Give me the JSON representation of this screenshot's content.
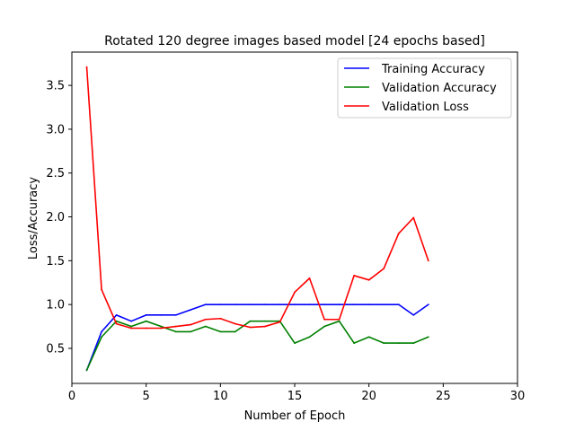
{
  "chart_data": {
    "type": "line",
    "title": "Rotated 120 degree images based model [24 epochs based]",
    "xlabel": "Number of Epoch",
    "ylabel": "Loss/Accuracy",
    "xlim": [
      0,
      30
    ],
    "ylim": [
      0.1,
      3.88
    ],
    "xticks": [
      0,
      5,
      10,
      15,
      20,
      25,
      30
    ],
    "xtick_labels": [
      "0",
      "5",
      "10",
      "15",
      "20",
      "25",
      "30"
    ],
    "yticks": [
      0.5,
      1.0,
      1.5,
      2.0,
      2.5,
      3.0,
      3.5
    ],
    "ytick_labels": [
      "0.5",
      "1.0",
      "1.5",
      "2.0",
      "2.5",
      "3.0",
      "3.5"
    ],
    "grid": false,
    "legend_position": "top-right",
    "x": [
      1,
      2,
      3,
      4,
      5,
      6,
      7,
      8,
      9,
      10,
      11,
      12,
      13,
      14,
      15,
      16,
      17,
      18,
      19,
      20,
      21,
      22,
      23,
      24
    ],
    "series": [
      {
        "name": "Training Accuracy",
        "color": "#0000ff",
        "values": [
          0.25,
          0.69,
          0.88,
          0.81,
          0.88,
          0.88,
          0.88,
          0.94,
          1.0,
          1.0,
          1.0,
          1.0,
          1.0,
          1.0,
          1.0,
          1.0,
          1.0,
          1.0,
          1.0,
          1.0,
          1.0,
          1.0,
          0.88,
          1.0
        ]
      },
      {
        "name": "Validation Accuracy",
        "color": "#008000",
        "values": [
          0.25,
          0.63,
          0.81,
          0.75,
          0.81,
          0.75,
          0.69,
          0.69,
          0.75,
          0.69,
          0.69,
          0.81,
          0.81,
          0.81,
          0.56,
          0.63,
          0.75,
          0.81,
          0.56,
          0.63,
          0.56,
          0.56,
          0.56,
          0.63
        ]
      },
      {
        "name": "Validation Loss",
        "color": "#ff0000",
        "values": [
          3.71,
          1.17,
          0.78,
          0.73,
          0.73,
          0.73,
          0.75,
          0.77,
          0.83,
          0.84,
          0.78,
          0.74,
          0.75,
          0.8,
          1.14,
          1.3,
          0.83,
          0.83,
          1.33,
          1.28,
          1.41,
          1.81,
          1.99,
          1.5
        ]
      }
    ]
  }
}
